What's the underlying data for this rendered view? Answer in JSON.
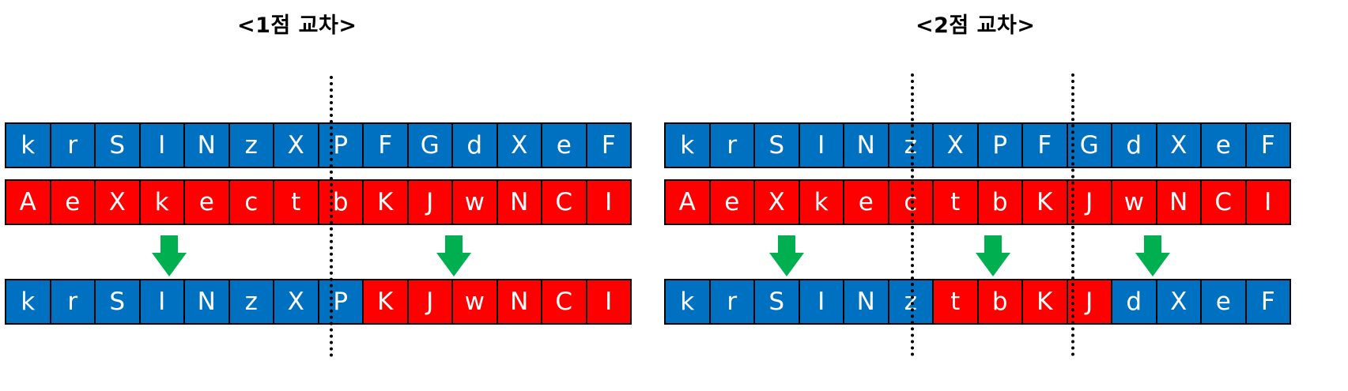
{
  "colors": {
    "blue": "#0070c0",
    "red": "#ff0000",
    "arrow": "#00b050",
    "divider": "#000000"
  },
  "left": {
    "title": "<1점 교차>",
    "parent1": [
      "k",
      "r",
      "S",
      "I",
      "N",
      "z",
      "X",
      "P",
      "F",
      "G",
      "d",
      "X",
      "e",
      "F"
    ],
    "parent2": [
      "A",
      "e",
      "X",
      "k",
      "e",
      "c",
      "t",
      "b",
      "K",
      "J",
      "w",
      "N",
      "C",
      "I"
    ],
    "offspring": [
      "k",
      "r",
      "S",
      "I",
      "N",
      "z",
      "X",
      "P",
      "K",
      "J",
      "w",
      "N",
      "C",
      "I"
    ],
    "offspring_colors": [
      "blue",
      "blue",
      "blue",
      "blue",
      "blue",
      "blue",
      "blue",
      "blue",
      "red",
      "red",
      "red",
      "red",
      "red",
      "red"
    ],
    "crossover_points": [
      8
    ]
  },
  "right": {
    "title": "<2점 교차>",
    "parent1": [
      "k",
      "r",
      "S",
      "I",
      "N",
      "z",
      "X",
      "P",
      "F",
      "G",
      "d",
      "X",
      "e",
      "F"
    ],
    "parent2": [
      "A",
      "e",
      "X",
      "k",
      "e",
      "c",
      "t",
      "b",
      "K",
      "J",
      "w",
      "N",
      "C",
      "I"
    ],
    "offspring": [
      "k",
      "r",
      "S",
      "I",
      "N",
      "z",
      "t",
      "b",
      "K",
      "J",
      "d",
      "X",
      "e",
      "F"
    ],
    "offspring_colors": [
      "blue",
      "blue",
      "blue",
      "blue",
      "blue",
      "blue",
      "red",
      "red",
      "red",
      "red",
      "blue",
      "blue",
      "blue",
      "blue"
    ],
    "crossover_points": [
      6,
      10
    ]
  }
}
